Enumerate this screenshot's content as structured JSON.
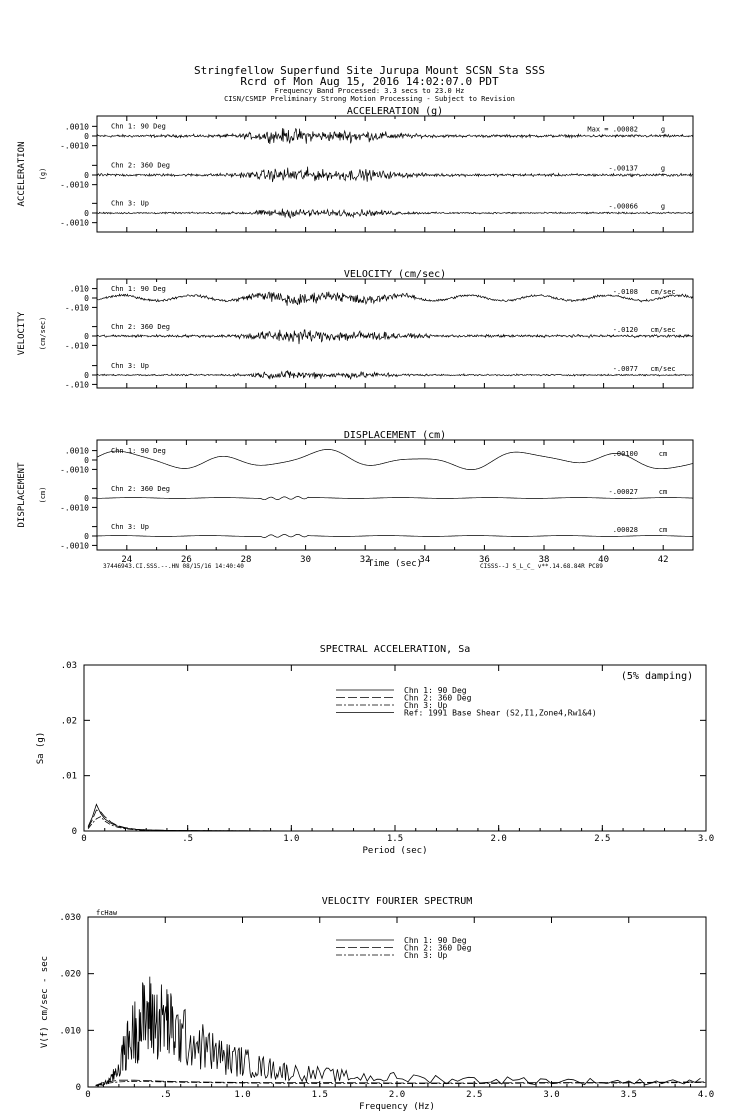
{
  "header": {
    "line1": "Stringfellow Superfund Site Jurupa Mount    SCSN Sta SSS",
    "line2": "Rcrd of Mon Aug 15, 2016 14:02:07.0 PDT",
    "line3": "Frequency Band Processed: 3.3 secs to 23.0 Hz",
    "line4": "CISN/CSMIP Preliminary Strong Motion Processing - Subject to Revision"
  },
  "colors": {
    "ink": "#000000",
    "background": "#ffffff"
  },
  "chart_data": [
    {
      "type": "line",
      "title": "ACCELERATION (g)",
      "ylabel": "ACCELERATION",
      "unit_label": "(g)",
      "xlim": [
        23,
        43
      ],
      "ylim": [
        -0.001,
        0.001
      ],
      "tick_labels": [
        ".0010",
        "0",
        "-.0010"
      ],
      "channels": [
        {
          "name": "Chn 1: 90 Deg",
          "max_text": "Max =   .00082",
          "unit": "g"
        },
        {
          "name": "Chn 2: 360 Deg",
          "max_text": "-.00137",
          "unit": "g"
        },
        {
          "name": "Chn 3: Up",
          "max_text": "-.00066",
          "unit": "g"
        }
      ]
    },
    {
      "type": "line",
      "title": "VELOCITY (cm/sec)",
      "ylabel": "VELOCITY",
      "unit_label": "(cm/sec)",
      "xlim": [
        23,
        43
      ],
      "ylim": [
        -0.01,
        0.01
      ],
      "tick_labels": [
        ".010",
        "0",
        "-.010"
      ],
      "channels": [
        {
          "name": "Chn 1: 90 Deg",
          "max_text": "-.0108",
          "unit": "cm/sec"
        },
        {
          "name": "Chn 2: 360 Deg",
          "max_text": "-.0120",
          "unit": "cm/sec"
        },
        {
          "name": "Chn 3: Up",
          "max_text": "-.0077",
          "unit": "cm/sec"
        }
      ]
    },
    {
      "type": "line",
      "title": "DISPLACEMENT (cm)",
      "ylabel": "DISPLACEMENT",
      "unit_label": "(cm)",
      "xlabel": "Time (sec)",
      "xlim": [
        23,
        43
      ],
      "ylim": [
        -0.001,
        0.001
      ],
      "tick_labels": [
        ".0010",
        "0",
        "-.0010"
      ],
      "x_ticks": [
        24,
        26,
        28,
        30,
        32,
        34,
        36,
        38,
        40,
        42
      ],
      "footer_left": "37446943.CI.SSS.--.HN 08/15/16 14:40:40",
      "footer_right": "CISSS--J  S_L_C_  v**.14.68.84R PC89",
      "channels": [
        {
          "name": "Chn 1: 90 Deg",
          "max_text": "-.00100",
          "unit": "cm"
        },
        {
          "name": "Chn 2: 360 Deg",
          "max_text": "-.00027",
          "unit": "cm"
        },
        {
          "name": "Chn 3: Up",
          "max_text": ".00028",
          "unit": "cm"
        }
      ]
    },
    {
      "type": "line",
      "title": "SPECTRAL ACCELERATION, Sa",
      "ylabel": "Sa (g)",
      "xlabel": "Period (sec)",
      "xlim": [
        0,
        3.0
      ],
      "ylim": [
        0,
        0.03
      ],
      "x_ticks": [
        "0",
        ".5",
        "1.0",
        "1.5",
        "2.0",
        "2.5",
        "3.0"
      ],
      "y_ticks": [
        "0",
        ".01",
        ".02",
        ".03"
      ],
      "annotation": "(5% damping)",
      "legend": [
        "Chn 1: 90 Deg",
        "Chn 2: 360 Deg",
        "Chn 3: Up",
        "Ref: 1991 Base Shear (S2,I1,Zone4,Rw1&4)"
      ],
      "series": [
        {
          "name": "Chn 1: 90 Deg",
          "x": [
            0.02,
            0.04,
            0.06,
            0.08,
            0.1,
            0.13,
            0.16,
            0.2,
            0.25,
            0.3,
            0.4,
            0.6,
            1.0,
            3.0
          ],
          "y": [
            0.0008,
            0.0025,
            0.0048,
            0.0032,
            0.0022,
            0.0014,
            0.0009,
            0.0005,
            0.0003,
            0.0002,
            0.0001,
            5e-05,
            2e-05,
            0.0
          ]
        },
        {
          "name": "Chn 2: 360 Deg",
          "x": [
            0.02,
            0.04,
            0.06,
            0.08,
            0.1,
            0.13,
            0.16,
            0.2,
            0.25,
            0.3,
            0.4,
            0.6,
            1.0,
            3.0
          ],
          "y": [
            0.0006,
            0.002,
            0.0038,
            0.0035,
            0.0026,
            0.0016,
            0.001,
            0.0006,
            0.0003,
            0.0002,
            0.0001,
            5e-05,
            2e-05,
            0.0
          ]
        },
        {
          "name": "Chn 3: Up",
          "x": [
            0.02,
            0.04,
            0.06,
            0.08,
            0.1,
            0.13,
            0.16,
            0.2,
            0.25,
            0.3,
            0.4,
            0.6,
            1.0,
            3.0
          ],
          "y": [
            0.0004,
            0.0014,
            0.0022,
            0.0026,
            0.0018,
            0.0011,
            0.0007,
            0.0004,
            0.0002,
            0.0001,
            5e-05,
            3e-05,
            1e-05,
            0.0
          ]
        }
      ]
    },
    {
      "type": "line",
      "title": "VELOCITY FOURIER SPECTRUM",
      "ylabel": "V(f)   cm/sec - sec",
      "xlabel": "Frequency (Hz)",
      "corner_label": "fcHaw",
      "xlim": [
        0,
        4.0
      ],
      "ylim": [
        0,
        0.03
      ],
      "x_ticks": [
        "0",
        ".5",
        "1.0",
        "1.5",
        "2.0",
        "2.5",
        "3.0",
        "3.5",
        "4.0"
      ],
      "y_ticks": [
        "0",
        ".010",
        ".020",
        ".030"
      ],
      "legend": [
        "Chn 1: 90 Deg",
        "Chn 2: 360 Deg",
        "Chn 3: Up"
      ],
      "series": [
        {
          "name": "Chn 1: 90 Deg",
          "x": [
            0.05,
            0.1,
            0.15,
            0.2,
            0.25,
            0.3,
            0.35,
            0.4,
            0.45,
            0.5,
            0.55,
            0.6,
            0.7,
            0.8,
            0.9,
            1.0,
            1.1,
            1.2,
            1.3,
            1.5,
            1.7,
            2.0,
            2.5,
            3.0,
            3.5,
            4.0
          ],
          "y": [
            0.0002,
            0.0006,
            0.0015,
            0.004,
            0.008,
            0.011,
            0.013,
            0.014,
            0.0125,
            0.0135,
            0.011,
            0.01,
            0.0085,
            0.007,
            0.0055,
            0.005,
            0.004,
            0.0035,
            0.003,
            0.0025,
            0.002,
            0.0018,
            0.0014,
            0.0012,
            0.001,
            0.0012
          ]
        },
        {
          "name": "Chn 2: 360 Deg",
          "x": [
            0.05,
            0.1,
            0.2,
            0.3,
            0.5,
            0.7,
            1.0,
            1.5,
            2.0,
            2.5,
            3.0,
            3.5,
            4.0
          ],
          "y": [
            0.0003,
            0.0008,
            0.0012,
            0.0012,
            0.001,
            0.0009,
            0.0008,
            0.0008,
            0.0007,
            0.0007,
            0.0008,
            0.0008,
            0.0009
          ]
        },
        {
          "name": "Chn 3: Up",
          "x": [
            0.05,
            0.1,
            0.2,
            0.3,
            0.5,
            0.7,
            1.0,
            1.5,
            2.0,
            2.5,
            3.0,
            3.5,
            4.0
          ],
          "y": [
            0.0002,
            0.0006,
            0.0009,
            0.001,
            0.0009,
            0.0008,
            0.0007,
            0.0006,
            0.0006,
            0.0006,
            0.0007,
            0.0007,
            0.0008
          ]
        }
      ]
    }
  ]
}
